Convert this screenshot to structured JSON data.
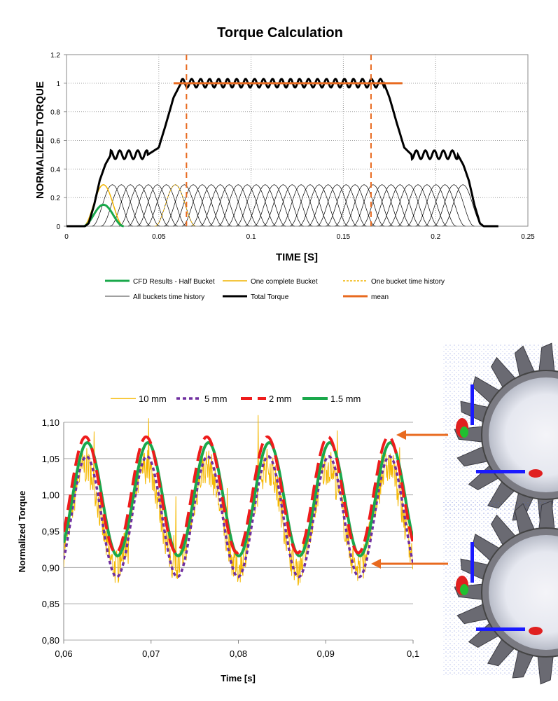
{
  "chart_data": [
    {
      "type": "line",
      "title": "Torque Calculation",
      "xlabel": "TIME [S]",
      "ylabel": "NORMALIZED TORQUE",
      "xlim": [
        0,
        0.25
      ],
      "ylim": [
        0,
        1.2
      ],
      "x_ticks": [
        "0",
        "0.05",
        "0.1",
        "0.15",
        "0.2",
        "0.25"
      ],
      "y_ticks": [
        "0",
        "0.2",
        "0.4",
        "0.6",
        "0.8",
        "1",
        "1.2"
      ],
      "grid": true,
      "legend_position": "bottom",
      "legend": [
        {
          "name": "CFD Results - Half Bucket",
          "color": "#1aa84b",
          "style": "solid-thick"
        },
        {
          "name": "One complete Bucket",
          "color": "#f0b400",
          "style": "solid"
        },
        {
          "name": "One bucket time history",
          "color": "#f0b400",
          "style": "dashed"
        },
        {
          "name": "All buckets time history",
          "color": "#000000",
          "style": "solid-thin"
        },
        {
          "name": "Total Torque",
          "color": "#000000",
          "style": "solid-thick"
        },
        {
          "name": "mean",
          "color": "#e86a1f",
          "style": "solid-thick"
        }
      ],
      "bucket_pulse": {
        "peak": 0.29,
        "width_s": 0.022,
        "first_center_s": 0.02,
        "spacing_s": 0.00487,
        "count": 41
      },
      "cfd_half_bucket": {
        "peak": 0.15,
        "center_s": 0.02
      },
      "total_torque": [
        [
          0,
          0
        ],
        [
          0.01,
          0
        ],
        [
          0.012,
          0.02
        ],
        [
          0.015,
          0.15
        ],
        [
          0.018,
          0.32
        ],
        [
          0.021,
          0.43
        ],
        [
          0.024,
          0.5
        ],
        [
          0.044,
          0.5
        ],
        [
          0.05,
          0.55
        ],
        [
          0.054,
          0.72
        ],
        [
          0.058,
          0.9
        ],
        [
          0.062,
          1.0
        ],
        [
          0.172,
          1.0
        ],
        [
          0.175,
          0.9
        ],
        [
          0.179,
          0.72
        ],
        [
          0.183,
          0.55
        ],
        [
          0.187,
          0.5
        ],
        [
          0.212,
          0.5
        ],
        [
          0.215,
          0.43
        ],
        [
          0.218,
          0.32
        ],
        [
          0.221,
          0.15
        ],
        [
          0.224,
          0.02
        ],
        [
          0.226,
          0
        ],
        [
          0.234,
          0
        ]
      ],
      "total_torque_ripple": {
        "amplitude": 0.03,
        "period_s": 0.00487
      },
      "mean": {
        "value": 1.0,
        "x_range": [
          0.058,
          0.182
        ]
      },
      "markers_x": [
        0.065,
        0.165
      ],
      "marker_color": "#e86a1f"
    },
    {
      "type": "line",
      "title": "",
      "xlabel": "Time [s]",
      "ylabel": "Normalized Torque",
      "xlim": [
        0.06,
        0.1
      ],
      "ylim": [
        0.8,
        1.1
      ],
      "x_ticks": [
        "0,06",
        "0,07",
        "0,08",
        "0,09",
        "0,1"
      ],
      "y_ticks": [
        "0,80",
        "0,85",
        "0,90",
        "0,95",
        "1,00",
        "1,05",
        "1,10"
      ],
      "grid": true,
      "legend_position": "top",
      "series": [
        {
          "name": "10 mm",
          "color": "#f5b800",
          "style": "thin-noisy",
          "mean": 0.97,
          "amplitude": 0.07,
          "period_s": 0.00694,
          "peak_x_s": 0.0625
        },
        {
          "name": "5 mm",
          "color": "#7030a0",
          "style": "dashed",
          "mean": 0.97,
          "amplitude": 0.083,
          "period_s": 0.00694,
          "peak_x_s": 0.0626
        },
        {
          "name": "2 mm",
          "color": "#ee1c1c",
          "style": "long-dashed",
          "mean": 1.0,
          "amplitude": 0.08,
          "period_s": 0.00694,
          "peak_x_s": 0.0625
        },
        {
          "name": "1.5 mm",
          "color": "#1aa84b",
          "style": "solid-thick",
          "mean": 0.994,
          "amplitude": 0.078,
          "period_s": 0.00694,
          "peak_x_s": 0.0627
        }
      ],
      "arrows_color": "#e86a1f"
    }
  ],
  "images": [
    {
      "name": "runner-render-top",
      "depicts": "Pelton runner buckets with jet pressure contours"
    },
    {
      "name": "runner-render-bottom",
      "depicts": "Pelton runner buckets with jet pressure contours"
    }
  ]
}
